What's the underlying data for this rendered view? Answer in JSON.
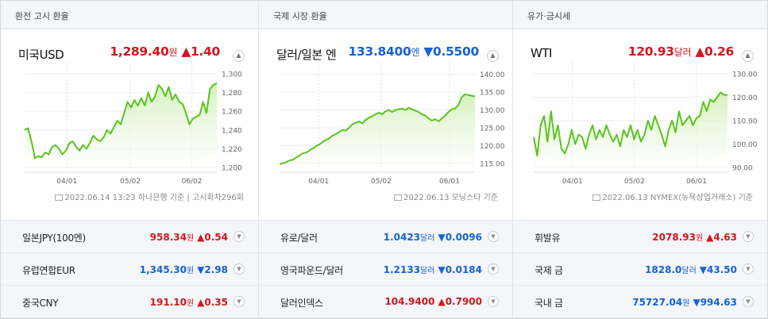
{
  "colors": {
    "up": "#d3161c",
    "down": "#1562d6",
    "line": "#59c41c",
    "fill": "#eaf8dc"
  },
  "panels": [
    {
      "header": "환전 고시 환율",
      "title": "미국USD",
      "value": "1,289.40",
      "unit": "원",
      "direction": "up",
      "arrow": "▲",
      "change": "1.40",
      "source": "2022.06.14 13:23 하나은행 기준 | 고시회차296회",
      "chart_data": {
        "type": "line",
        "series": [
          {
            "values": [
              1240,
              1242,
              1228,
              1210,
              1212,
              1211,
              1216,
              1214,
              1222,
              1224,
              1220,
              1214,
              1218,
              1226,
              1228,
              1222,
              1218,
              1224,
              1220,
              1226,
              1234,
              1230,
              1228,
              1232,
              1240,
              1236,
              1243,
              1250,
              1246,
              1258,
              1270,
              1264,
              1272,
              1266,
              1274,
              1266,
              1280,
              1270,
              1276,
              1288,
              1284,
              1276,
              1286,
              1272,
              1278,
              1270,
              1268,
              1258,
              1246,
              1252,
              1254,
              1256,
              1270,
              1258,
              1284,
              1288,
              1290
            ]
          }
        ],
        "ylim": [
          1195,
          1305
        ],
        "ticks": [
          "1,300",
          "1,280",
          "1,260",
          "1,240",
          "1,220",
          "1,200"
        ],
        "tick_values": [
          1300,
          1280,
          1260,
          1240,
          1220,
          1200
        ],
        "x_ticks": [
          "04/01",
          "05/02",
          "06/02"
        ],
        "x_tick_positions": [
          0.22,
          0.55,
          0.87
        ],
        "grid": true
      }
    },
    {
      "header": "국제 시장 환율",
      "title": "달러/일본 엔",
      "value": "133.8400",
      "unit": "엔",
      "direction": "down",
      "arrow": "▼",
      "change": "0.5500",
      "source": "2022.06.13 모닝스타 기준",
      "chart_data": {
        "type": "line",
        "series": [
          {
            "values": [
              114.8,
              115.0,
              115.3,
              115.8,
              116.0,
              116.6,
              117.2,
              117.8,
              118.0,
              118.6,
              119.2,
              119.8,
              120.3,
              121.0,
              121.6,
              122.0,
              122.8,
              123.2,
              123.8,
              124.4,
              124.2,
              125.0,
              126.0,
              126.4,
              126.8,
              126.2,
              127.2,
              127.8,
              128.3,
              128.8,
              129.2,
              128.8,
              129.6,
              130.0,
              129.4,
              130.0,
              130.2,
              130.4,
              130.0,
              130.6,
              130.2,
              129.8,
              129.4,
              128.8,
              128.4,
              127.6,
              127.0,
              127.4,
              126.8,
              127.6,
              128.4,
              129.4,
              130.2,
              130.4,
              131.4,
              133.6,
              134.4,
              134.2,
              134.0,
              133.8
            ]
          }
        ],
        "ylim": [
          112.5,
          141.5
        ],
        "ticks": [
          "140.00",
          "135.00",
          "130.00",
          "125.00",
          "120.00",
          "115.00"
        ],
        "tick_values": [
          140,
          135,
          130,
          125,
          120,
          115
        ],
        "x_ticks": [
          "04/01",
          "05/02",
          "06/01"
        ],
        "x_tick_positions": [
          0.2,
          0.52,
          0.87
        ],
        "grid": true
      }
    },
    {
      "header": "유가·금시세",
      "title": "WTI",
      "value": "120.93",
      "unit": "달러",
      "direction": "up",
      "arrow": "▲",
      "change": "0.26",
      "source": "2022.06.13 NYMEX(뉴욕상업거래소) 기준",
      "chart_data": {
        "type": "line",
        "series": [
          {
            "values": [
              103,
              95,
              108,
              112,
              101,
              114,
              102,
              108,
              98,
              96,
              100,
              106,
              100,
              104,
              103,
              98,
              104,
              108,
              102,
              106,
              103,
              108,
              104,
              101,
              104,
              99,
              106,
              103,
              108,
              102,
              106,
              101,
              104,
              110,
              106,
              112,
              108,
              104,
              99,
              106,
              110,
              105,
              114,
              108,
              110,
              112,
              108,
              111,
              112,
              118,
              114,
              119,
              118,
              120,
              122,
              121,
              120.9
            ]
          }
        ],
        "ylim": [
          88,
          132
        ],
        "ticks": [
          "130.00",
          "120.00",
          "110.00",
          "100.00",
          "90.00"
        ],
        "tick_values": [
          130,
          120,
          110,
          100,
          90
        ],
        "x_ticks": [
          "04/01",
          "05/02",
          "06/01"
        ],
        "x_tick_positions": [
          0.2,
          0.52,
          0.84
        ],
        "grid": true
      }
    }
  ],
  "rows": [
    [
      {
        "name": "일본JPY(100엔)",
        "value": "958.34",
        "unit": "원",
        "direction": "up",
        "arrow": "▲",
        "change": "0.54"
      },
      {
        "name": "유럽연합EUR",
        "value": "1,345.30",
        "unit": "원",
        "direction": "down",
        "arrow": "▼",
        "change": "2.98"
      },
      {
        "name": "중국CNY",
        "value": "191.10",
        "unit": "원",
        "direction": "up",
        "arrow": "▲",
        "change": "0.35"
      }
    ],
    [
      {
        "name": "유로/달러",
        "value": "1.0423",
        "unit": "달러",
        "direction": "down",
        "arrow": "▼",
        "change": "0.0096"
      },
      {
        "name": "영국파운드/달러",
        "value": "1.2133",
        "unit": "달러",
        "direction": "down",
        "arrow": "▼",
        "change": "0.0184"
      },
      {
        "name": "달러인덱스",
        "value": "104.9400",
        "unit": "",
        "direction": "up",
        "arrow": "▲",
        "change": "0.7900"
      }
    ],
    [
      {
        "name": "휘발유",
        "value": "2078.93",
        "unit": "원",
        "direction": "up",
        "arrow": "▲",
        "change": "4.63"
      },
      {
        "name": "국제 금",
        "value": "1828.0",
        "unit": "달러",
        "direction": "down",
        "arrow": "▼",
        "change": "43.50"
      },
      {
        "name": "국내 금",
        "value": "75727.04",
        "unit": "원",
        "direction": "down",
        "arrow": "▼",
        "change": "994.63"
      }
    ]
  ]
}
